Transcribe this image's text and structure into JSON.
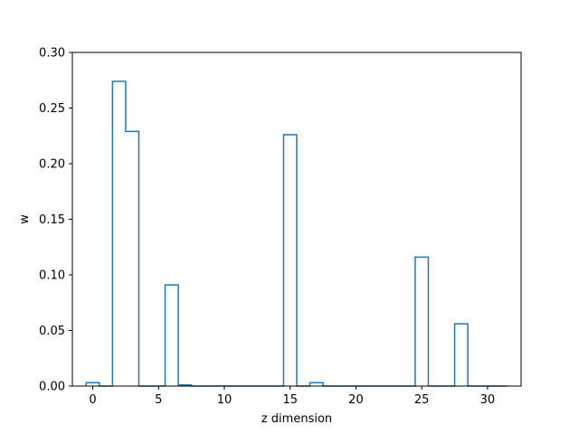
{
  "chart_data": {
    "type": "bar",
    "style": "step-histogram",
    "title": "",
    "xlabel": "z dimension",
    "ylabel": "w",
    "xlim": [
      -1.55,
      32.55
    ],
    "ylim": [
      0,
      0.3
    ],
    "grid": false,
    "legend": "none",
    "x_ticks": [
      0,
      5,
      10,
      15,
      20,
      25,
      30
    ],
    "x_tick_labels": [
      "0",
      "5",
      "10",
      "15",
      "20",
      "25",
      "30"
    ],
    "y_ticks": [
      0,
      0.05,
      0.1,
      0.15,
      0.2,
      0.25,
      0.3
    ],
    "y_tick_labels": [
      "0.00",
      "0.05",
      "0.10",
      "0.15",
      "0.20",
      "0.25",
      "0.30"
    ],
    "colors": {
      "series": "#1f77b4",
      "axes": "#000000"
    },
    "categories": [
      0,
      1,
      2,
      3,
      4,
      5,
      6,
      7,
      8,
      9,
      10,
      11,
      12,
      13,
      14,
      15,
      16,
      17,
      18,
      19,
      20,
      21,
      22,
      23,
      24,
      25,
      26,
      27,
      28,
      29,
      30,
      31
    ],
    "values": [
      0.003,
      0.0,
      0.274,
      0.229,
      0.0,
      0.0,
      0.091,
      0.001,
      0.0,
      0.0,
      0.0,
      0.0,
      0.0,
      0.0,
      0.0,
      0.226,
      0.0,
      0.003,
      0.0,
      0.0,
      0.0,
      0.0,
      0.0,
      0.0,
      0.0,
      0.116,
      0.0,
      0.0,
      0.056,
      0.0,
      0.0,
      0.0
    ]
  }
}
